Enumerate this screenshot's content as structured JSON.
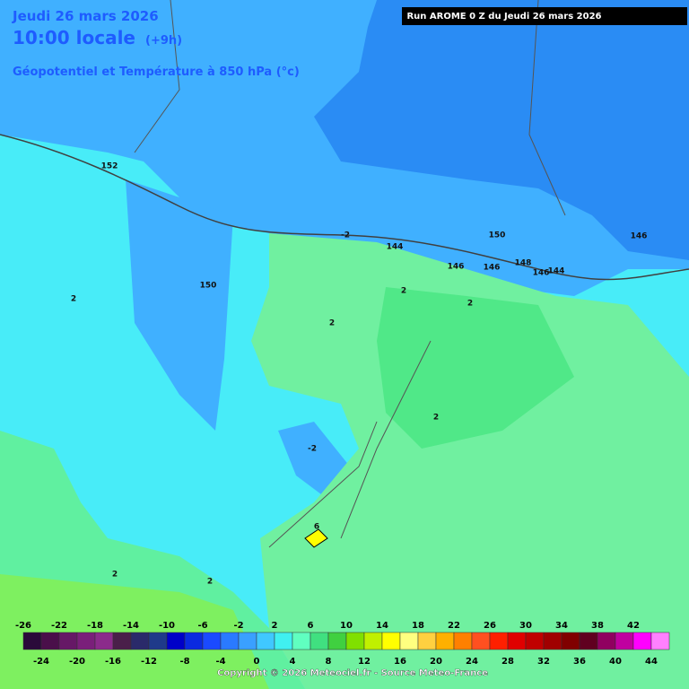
{
  "header": {
    "date": "Jeudi 26 mars 2026",
    "time": "10:00 locale",
    "offset": "(+9h)",
    "subtitle": "Géopotentiel et Température à 850 hPa (°c)",
    "run": "Run AROME 0 Z du Jeudi 26 mars 2026"
  },
  "contour_labels": [
    152,
    150,
    -2,
    144,
    150,
    146,
    146,
    148,
    146,
    144,
    146,
    2,
    2,
    2,
    2,
    -2,
    6,
    2,
    2,
    2
  ],
  "scale": {
    "labels": [
      -26,
      -24,
      -22,
      -20,
      -18,
      -16,
      -14,
      -12,
      -10,
      -8,
      -6,
      -4,
      -2,
      0,
      2,
      4,
      6,
      8,
      10,
      12,
      14,
      16,
      18,
      20,
      22,
      24,
      26,
      28,
      30,
      32,
      34,
      36,
      38,
      40,
      42,
      44
    ],
    "colors": [
      "#2a0a3a",
      "#4a0f4a",
      "#661866",
      "#7a1f7a",
      "#8b2b8b",
      "#4a1f4a",
      "#2a2a6a",
      "#1f3a8a",
      "#0000c8",
      "#0a2ae0",
      "#1a4aff",
      "#2a7aff",
      "#3aa0ff",
      "#40c8ff",
      "#40f0f0",
      "#60ffc0",
      "#40e080",
      "#40d040",
      "#80e000",
      "#c0f000",
      "#ffff00",
      "#ffff80",
      "#ffd040",
      "#ffb000",
      "#ff8000",
      "#ff5020",
      "#ff2000",
      "#e00000",
      "#c00000",
      "#a00000",
      "#800000",
      "#600020",
      "#900060",
      "#c000a0",
      "#ff00ff",
      "#ff80ff"
    ]
  },
  "copyright": "Copyright © 2026 Meteociel.fr - Source Meteo-France"
}
